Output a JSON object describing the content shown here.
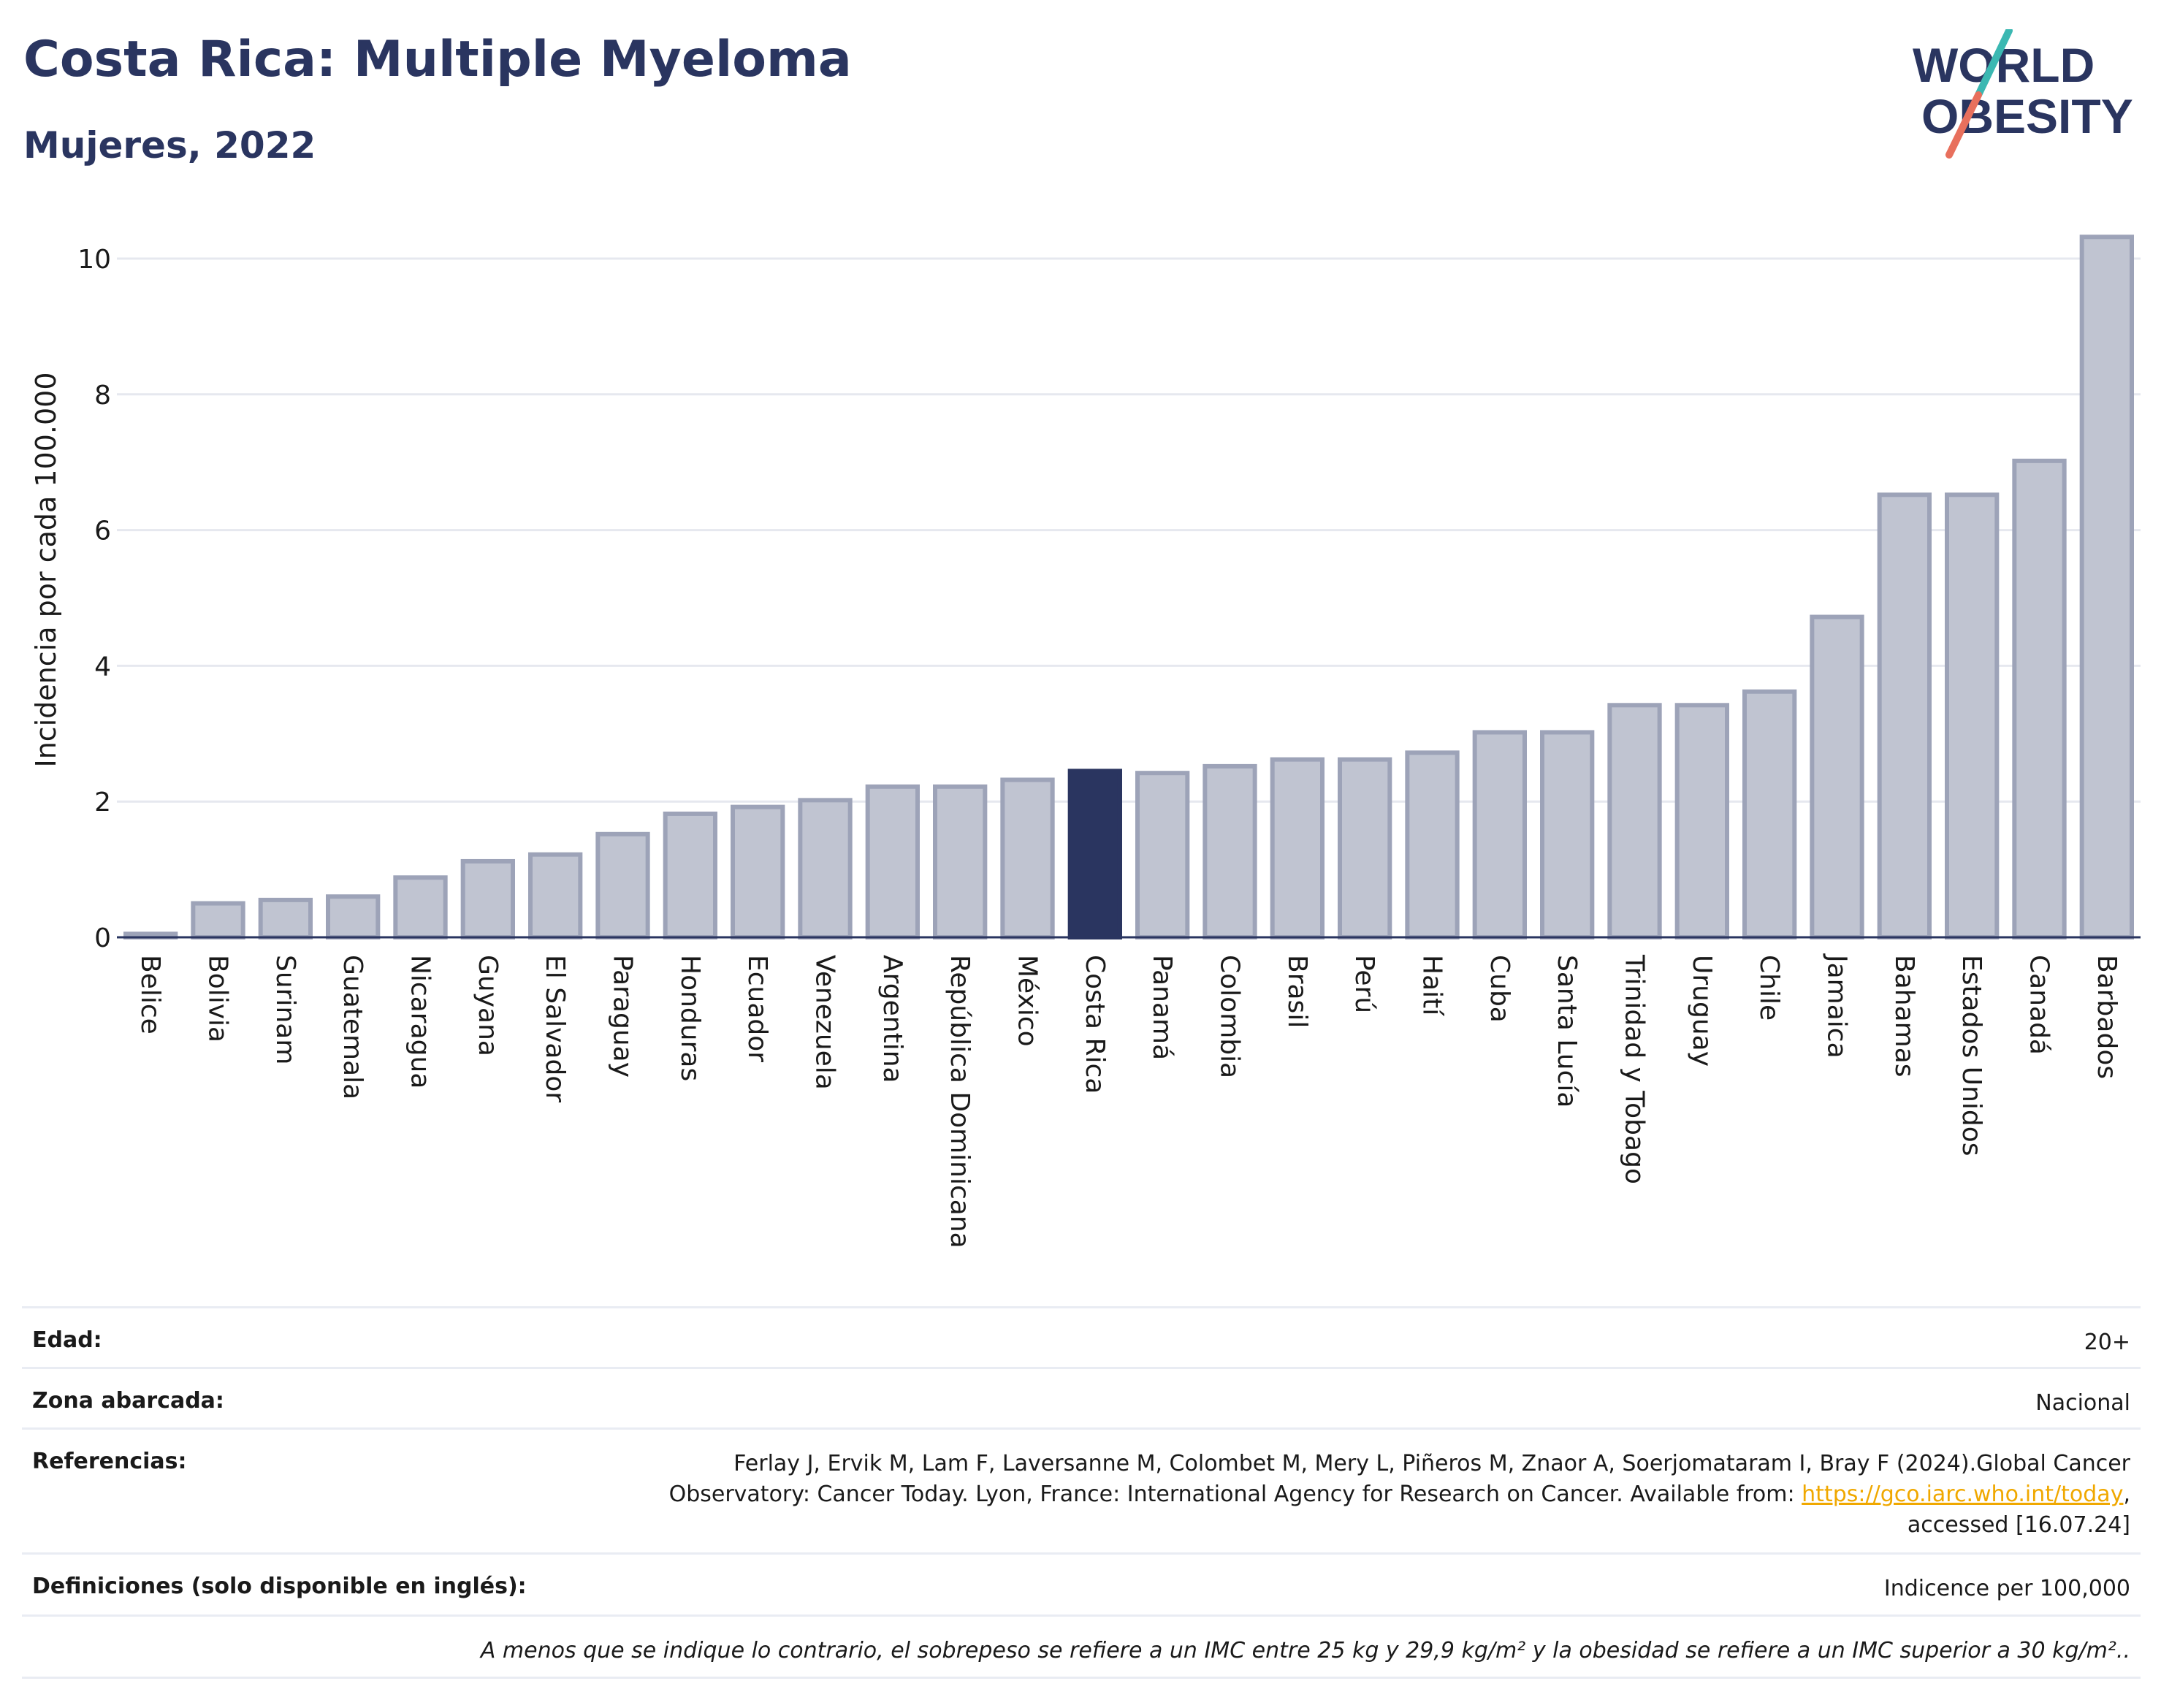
{
  "header": {
    "title": "Costa Rica: Multiple Myeloma",
    "subtitle": "Mujeres, 2022"
  },
  "logo": {
    "line1": "WORLD",
    "line2": "OBESITY",
    "icon": "world-obesity-logo"
  },
  "colors": {
    "bar": "#c0c4d1",
    "bar_stroke": "#9da3b8",
    "highlight": "#2a3560",
    "grid": "#e6e8ef",
    "text": "#2a3560"
  },
  "chart_data": {
    "type": "bar",
    "title": "Costa Rica: Multiple Myeloma",
    "subtitle": "Mujeres, 2022",
    "ylabel": "Incidencia por cada 100.000",
    "xlabel": "",
    "ylim": [
      0,
      10.5
    ],
    "yticks": [
      0,
      2,
      4,
      6,
      8,
      10
    ],
    "grid": true,
    "highlight": "Costa Rica",
    "categories": [
      "Belice",
      "Bolivia",
      "Surinam",
      "Guatemala",
      "Nicaragua",
      "Guyana",
      "El Salvador",
      "Paraguay",
      "Honduras",
      "Ecuador",
      "Venezuela",
      "Argentina",
      "República Dominicana",
      "México",
      "Costa Rica",
      "Panamá",
      "Colombia",
      "Brasil",
      "Perú",
      "Haití",
      "Cuba",
      "Santa Lucía",
      "Trinidad y Tobago",
      "Uruguay",
      "Chile",
      "Jamaica",
      "Bahamas",
      "Estados Unidos",
      "Canadá",
      "Barbados"
    ],
    "values": [
      0.05,
      0.5,
      0.55,
      0.6,
      0.88,
      1.12,
      1.22,
      1.52,
      1.82,
      1.92,
      2.02,
      2.22,
      2.22,
      2.32,
      2.45,
      2.42,
      2.52,
      2.62,
      2.62,
      2.72,
      3.02,
      3.02,
      3.42,
      3.42,
      3.62,
      4.72,
      6.52,
      6.52,
      7.02,
      10.32
    ]
  },
  "info": {
    "edad_label": "Edad:",
    "edad_value": "20+",
    "zona_label": "Zona abarcada:",
    "zona_value": "Nacional",
    "ref_label": "Referencias:",
    "ref_line1": "Ferlay J, Ervik M, Lam F, Laversanne M, Colombet M, Mery L, Piñeros M, Znaor A, Soerjomataram I, Bray F (2024).Global Cancer",
    "ref_line2_pre": "Observatory: Cancer Today. Lyon, France: International Agency for Research on Cancer. Available from: ",
    "ref_link": "https://gco.iarc.who.int/today",
    "ref_line2_post": ",",
    "ref_line3": "accessed [16.07.24]",
    "def_label": "Definiciones (solo disponible en inglés):",
    "def_value": "Indicence per 100,000",
    "note": "A menos que se indique lo contrario, el sobrepeso se refiere a un IMC entre 25 kg y 29,9 kg/m² y la obesidad se refiere a un IMC superior a 30 kg/m².."
  }
}
